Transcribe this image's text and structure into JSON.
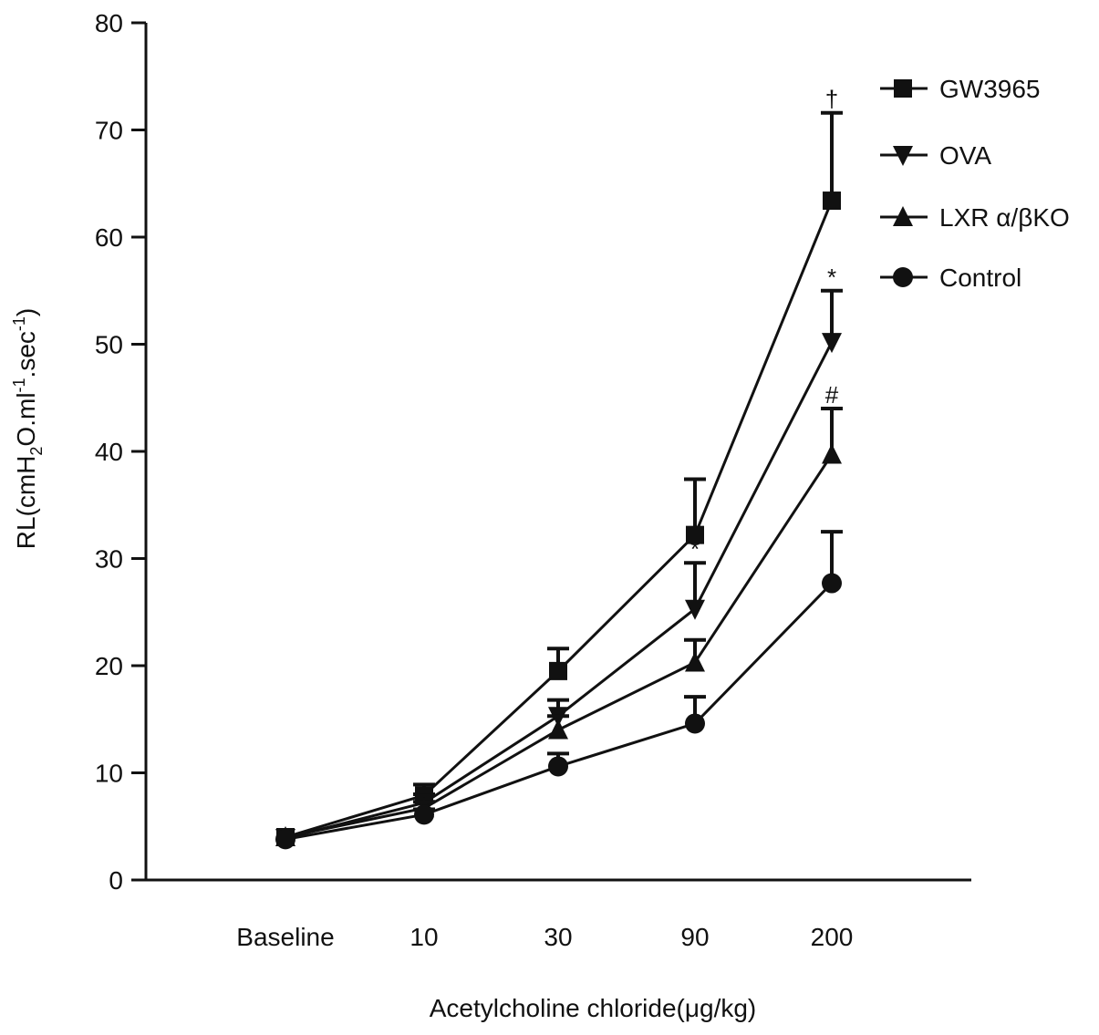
{
  "chart_data": {
    "type": "line",
    "title": "",
    "xlabel": "Acetylcholine chloride(μg/kg)",
    "ylabel": "RL(cmH2O.ml-1.sec-1)",
    "ylabel_parts": {
      "main": "RL(cmH",
      "sub": "2",
      "mid": "O.ml",
      "sup1": "-1",
      "mid2": ".sec",
      "sup2": "-1",
      "end": ")"
    },
    "categories": [
      "Baseline",
      "10",
      "30",
      "90",
      "200"
    ],
    "ylim": [
      0,
      80
    ],
    "yticks": [
      0,
      10,
      20,
      30,
      40,
      50,
      60,
      70,
      80
    ],
    "grid": false,
    "legend_position": "top-right",
    "series": [
      {
        "name": "GW3965",
        "marker": "square",
        "values": [
          4.0,
          7.9,
          19.5,
          32.2,
          63.4
        ],
        "errors": [
          0,
          1.0,
          2.1,
          5.2,
          8.2
        ]
      },
      {
        "name": "OVA",
        "marker": "triangle-down",
        "values": [
          3.9,
          7.2,
          15.3,
          25.3,
          50.2
        ],
        "errors": [
          0,
          0.8,
          1.5,
          4.3,
          4.8
        ]
      },
      {
        "name": "LXR α/βKO",
        "marker": "triangle-up",
        "values": [
          4.0,
          6.7,
          14.0,
          20.3,
          39.7
        ],
        "errors": [
          0,
          0.6,
          1.3,
          2.1,
          4.3
        ]
      },
      {
        "name": "Control",
        "marker": "circle",
        "values": [
          3.8,
          6.1,
          10.6,
          14.6,
          27.7
        ],
        "errors": [
          0,
          0.5,
          1.2,
          2.5,
          4.8
        ]
      }
    ],
    "annotations": [
      {
        "series": "GW3965",
        "category": "200",
        "text": "†"
      },
      {
        "series": "OVA",
        "category": "200",
        "text": "*"
      },
      {
        "series": "OVA",
        "category": "90",
        "text": "*"
      },
      {
        "series": "LXR α/βKO",
        "category": "200",
        "text": "#"
      }
    ]
  }
}
